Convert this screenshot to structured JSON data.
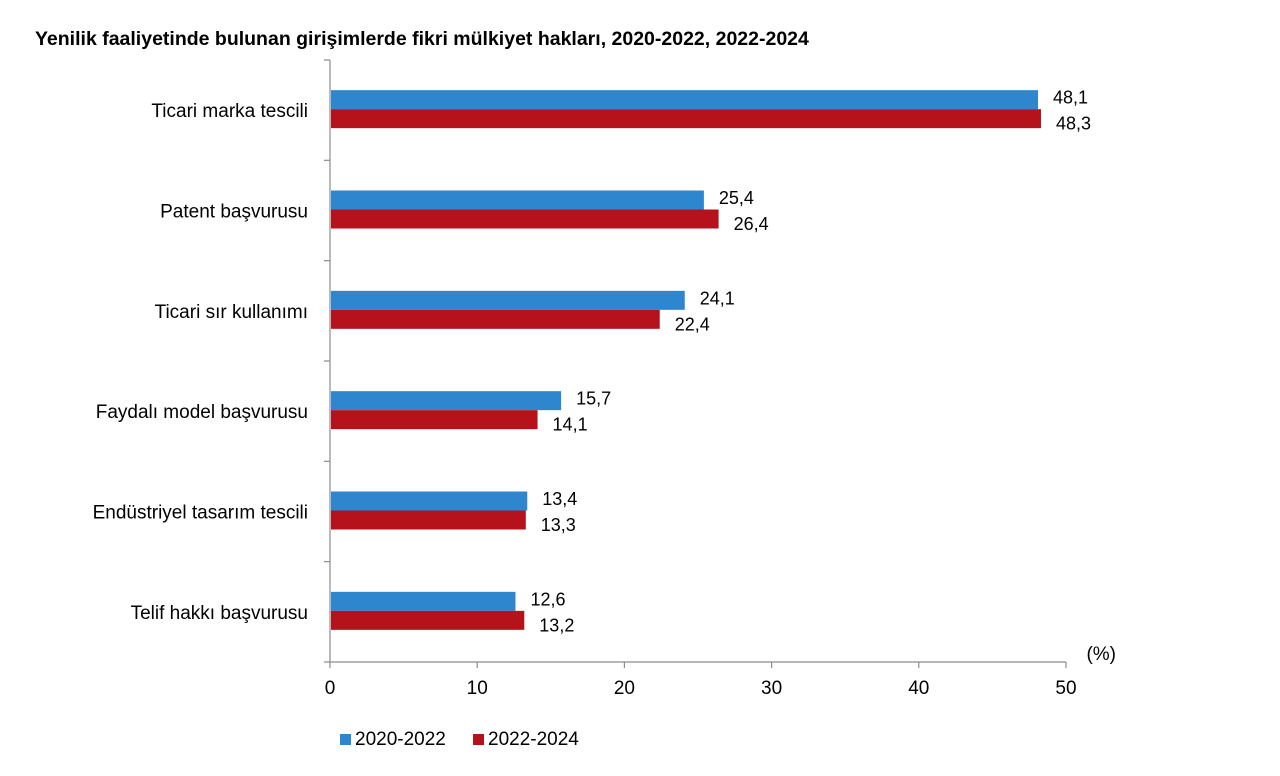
{
  "chart_data": {
    "type": "bar",
    "orientation": "horizontal",
    "title": "Yenilik faaliyetinde bulunan girişimlerde fikri mülkiyet hakları, 2020-2022, 2022-2024",
    "categories": [
      "Ticari marka tescili",
      "Patent başvurusu",
      "Ticari sır kullanımı",
      "Faydalı model başvurusu",
      "Endüstriyel tasarım tescili",
      "Telif hakkı başvurusu"
    ],
    "series": [
      {
        "name": "2020-2022",
        "color": "#2e86cf",
        "values": [
          48.1,
          25.4,
          24.1,
          15.7,
          13.4,
          12.6
        ],
        "labels": [
          "48,1",
          "25,4",
          "24,1",
          "15,7",
          "13,4",
          "12,6"
        ]
      },
      {
        "name": "2022-2024",
        "color": "#b5121b",
        "values": [
          48.3,
          26.4,
          22.4,
          14.1,
          13.3,
          13.2
        ],
        "labels": [
          "48,3",
          "26,4",
          "22,4",
          "14,1",
          "13,3",
          "13,2"
        ]
      }
    ],
    "x_ticks": [
      0,
      10,
      20,
      30,
      40,
      50
    ],
    "x_unit_label": "(%)",
    "xlim": [
      0,
      50
    ],
    "grid": false,
    "legend_position": "bottom-left"
  }
}
